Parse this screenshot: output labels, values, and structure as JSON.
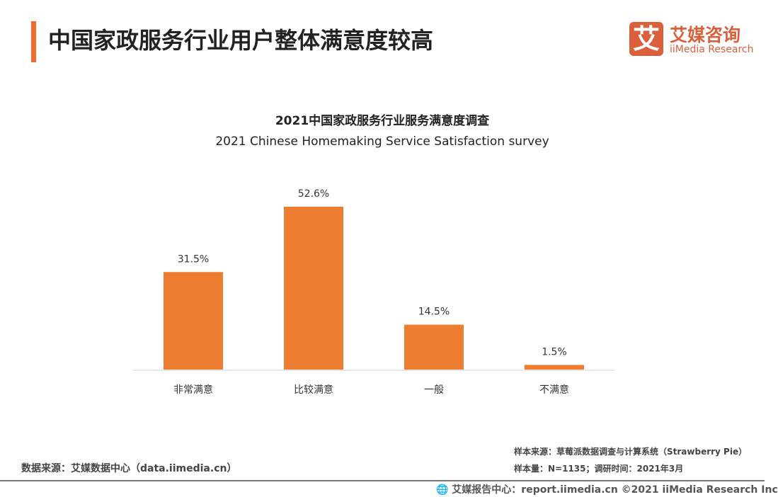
{
  "header": {
    "title": "中国家政服务行业用户整体满意度较高"
  },
  "logo": {
    "mark": "艾",
    "cn": "艾媒咨询",
    "en": "iiMedia Research"
  },
  "chart_data": {
    "type": "bar",
    "title": "2021中国家政服务行业服务满意度调查",
    "subtitle": "2021 Chinese Homemaking Service Satisfaction survey",
    "categories": [
      "非常满意",
      "比较满意",
      "一般",
      "不满意"
    ],
    "values": [
      31.5,
      52.6,
      14.5,
      1.5
    ],
    "data_labels": [
      "31.5%",
      "52.6%",
      "14.5%",
      "1.5%"
    ],
    "unit": "%",
    "xlabel": "",
    "ylabel": "",
    "ylim": [
      0,
      60
    ],
    "grid": false,
    "bar_color": "#ed7d31"
  },
  "footer": {
    "source_left": "数据来源：艾媒数据中心（data.iimedia.cn）",
    "sample_source": "样本来源：草莓派数据调查与计算系统（Strawberry Pie）",
    "sample_size": "样本量：N=1135；调研时间：2021年3月",
    "copyright": "🌐 艾媒报告中心：report.iimedia.cn   ©2021  iiMedia Research  Inc"
  }
}
